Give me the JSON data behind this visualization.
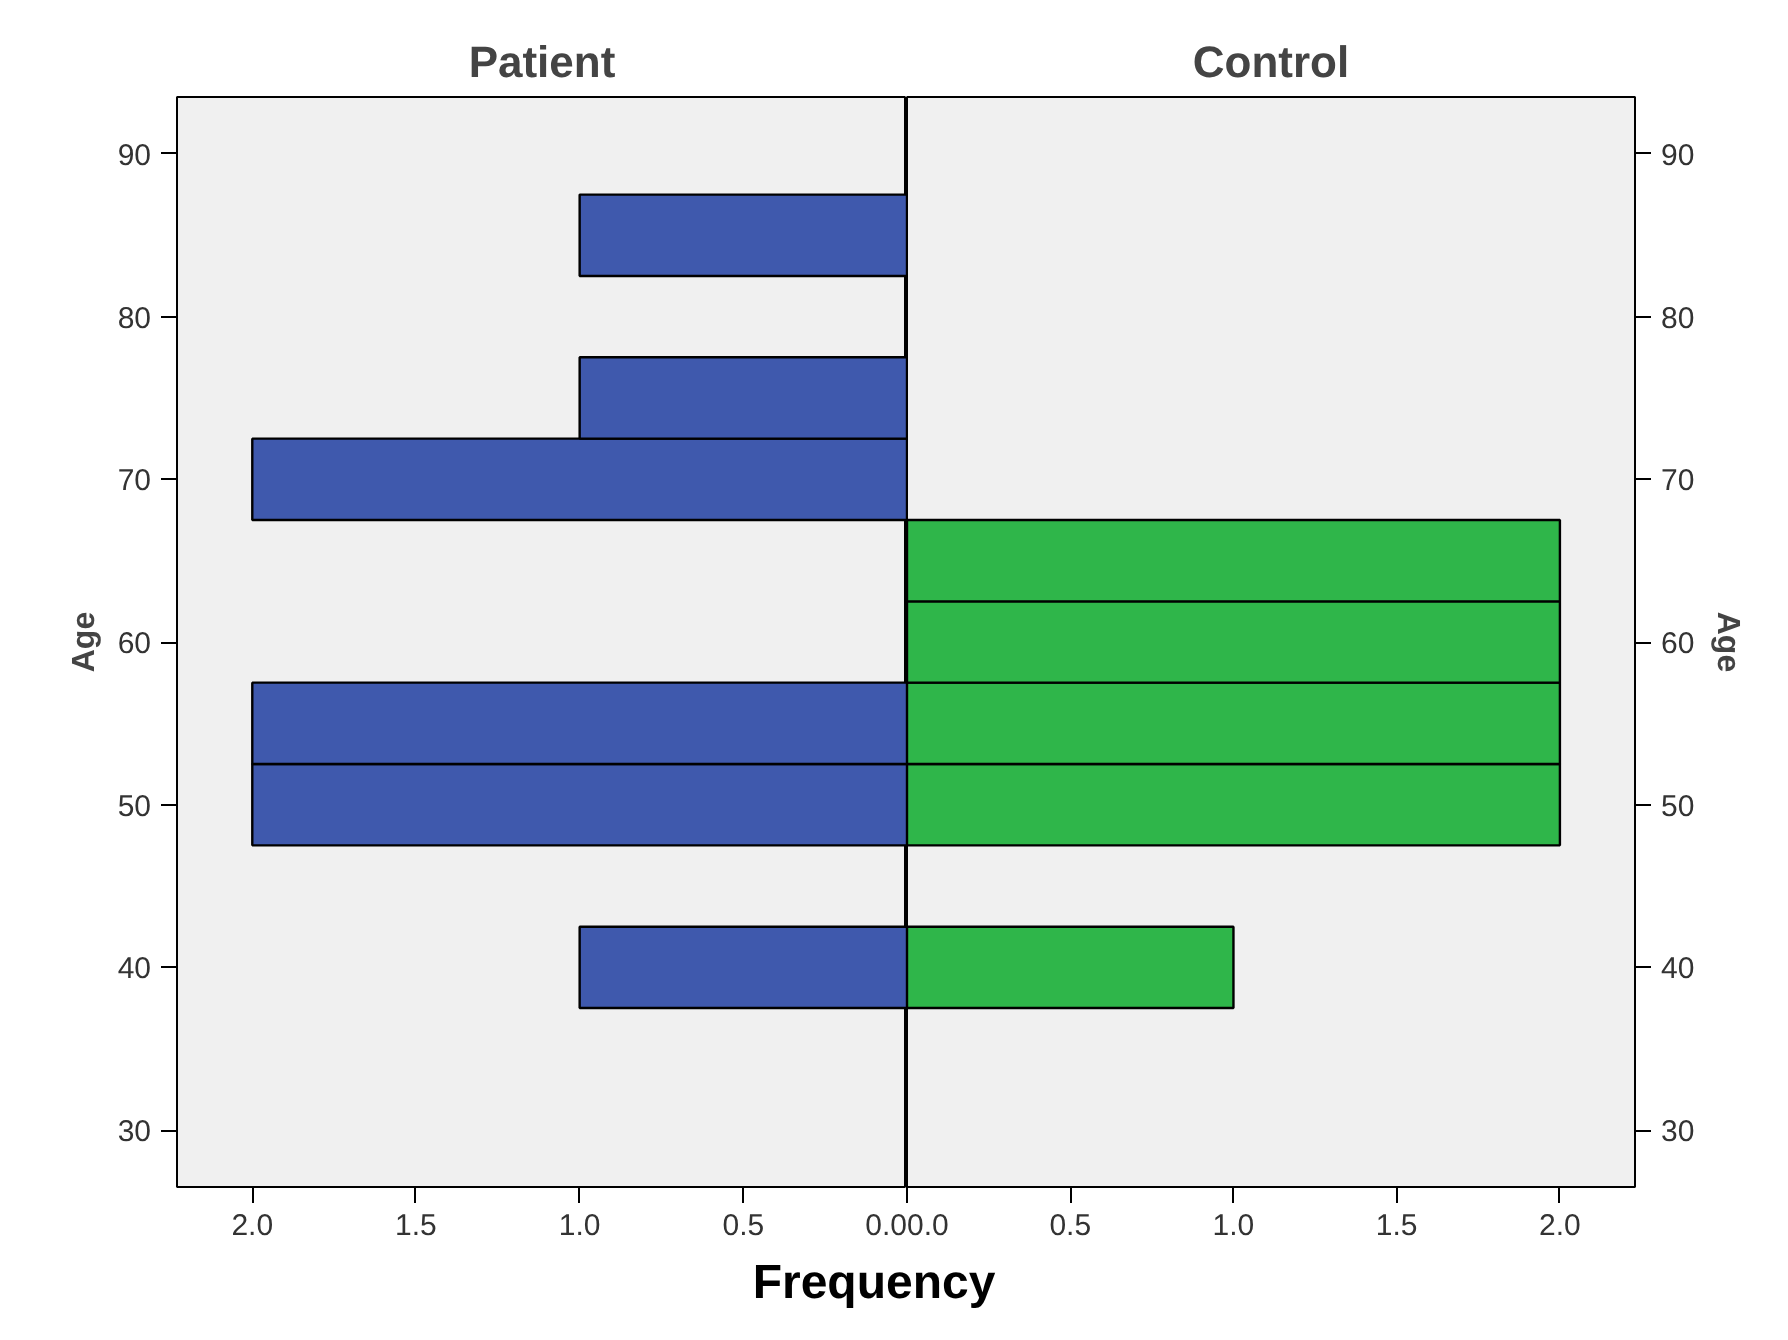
{
  "chart_data": [
    {
      "type": "histogram",
      "title": "Patient",
      "xlabel": "Frequency",
      "ylabel": "Age",
      "orientation": "horizontal",
      "color": "#3f59ad",
      "bins": [
        37.5,
        42.5,
        47.5,
        52.5,
        57.5,
        62.5,
        67.5,
        72.5,
        77.5,
        82.5,
        87.5
      ],
      "values": [
        1,
        0,
        2,
        2,
        0,
        0,
        2,
        1,
        0,
        1
      ],
      "xlim": [
        2.23,
        0
      ],
      "xticks": [
        {
          "value": 2,
          "label": "2.0"
        },
        {
          "value": 1.5,
          "label": "1.5"
        },
        {
          "value": 1,
          "label": "1.0"
        },
        {
          "value": 0.5,
          "label": "0.5"
        },
        {
          "value": 0,
          "label": "0.0"
        }
      ],
      "ylim": [
        26.5,
        93.5
      ],
      "yticks": [
        30,
        40,
        50,
        60,
        70,
        80,
        90
      ],
      "grid": false
    },
    {
      "type": "histogram",
      "title": "Control",
      "ylabel": "Age",
      "orientation": "horizontal",
      "color": "#2fb64a",
      "bins": [
        37.5,
        42.5,
        47.5,
        52.5,
        57.5,
        62.5,
        67.5
      ],
      "values": [
        1,
        0,
        2,
        2,
        2,
        2
      ],
      "xlim": [
        0,
        2.23
      ],
      "xticks": [
        {
          "value": 0,
          "label": "0.0"
        },
        {
          "value": 0.5,
          "label": "0.5"
        },
        {
          "value": 1,
          "label": "1.0"
        },
        {
          "value": 1.5,
          "label": "1.5"
        },
        {
          "value": 2,
          "label": "2.0"
        }
      ],
      "ylim": [
        26.5,
        93.5
      ],
      "yticks": [
        30,
        40,
        50,
        60,
        70,
        80,
        90
      ],
      "grid": false
    }
  ]
}
